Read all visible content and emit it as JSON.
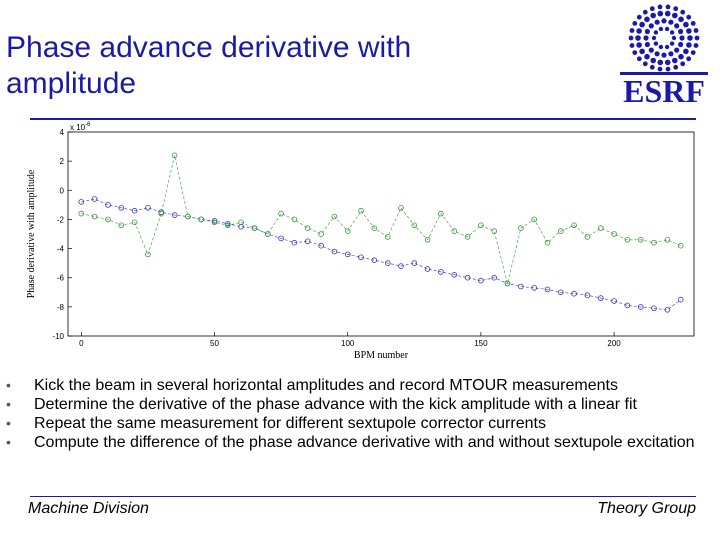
{
  "slide": {
    "title": "Phase advance derivative with amplitude",
    "logo_text": "ESRF",
    "footer_left": "Machine Division",
    "footer_right": "Theory Group",
    "bullets": [
      "Kick the beam in several horizontal amplitudes and record MTOUR measurements",
      "Determine the derivative of the phase advance with the kick amplitude with a linear fit",
      "Repeat the same measurement for different sextupole corrector currents",
      "Compute the difference of the phase advance derivative with and without sextupole excitation"
    ],
    "colors": {
      "title": "#1a1aa6",
      "series_blue": "#3333bb",
      "series_green": "#339933"
    }
  },
  "chart_data": {
    "type": "scatter",
    "xlabel": "BPM number",
    "ylabel": "Phase derivative with amplitude",
    "scale_label": "x 10",
    "scale_exponent": "-6",
    "xlim": [
      -5,
      230
    ],
    "ylim": [
      -10,
      4
    ],
    "xticks": [
      0,
      50,
      100,
      150,
      200
    ],
    "yticks": [
      4,
      2,
      0,
      -2,
      -4,
      -6,
      -8,
      -10
    ],
    "series": [
      {
        "color": "#3333bb",
        "x": [
          0,
          5,
          10,
          15,
          20,
          25,
          30,
          35,
          40,
          45,
          50,
          55,
          60,
          65,
          70,
          75,
          80,
          85,
          90,
          95,
          100,
          105,
          110,
          115,
          120,
          125,
          130,
          135,
          140,
          145,
          150,
          155,
          160,
          165,
          170,
          175,
          180,
          185,
          190,
          195,
          200,
          205,
          210,
          215,
          220,
          225
        ],
        "y": [
          -0.8,
          -0.6,
          -1.0,
          -1.2,
          -1.4,
          -1.2,
          -1.5,
          -1.7,
          -1.8,
          -2.0,
          -2.1,
          -2.3,
          -2.5,
          -2.6,
          -3.0,
          -3.3,
          -3.6,
          -3.5,
          -3.8,
          -4.2,
          -4.4,
          -4.6,
          -4.8,
          -5.0,
          -5.2,
          -5.0,
          -5.4,
          -5.6,
          -5.8,
          -6.0,
          -6.2,
          -6.0,
          -6.4,
          -6.6,
          -6.7,
          -6.8,
          -7.0,
          -7.1,
          -7.2,
          -7.4,
          -7.6,
          -7.9,
          -8.0,
          -8.1,
          -8.2,
          -7.5
        ]
      },
      {
        "color": "#339933",
        "x": [
          0,
          5,
          10,
          15,
          20,
          25,
          30,
          35,
          40,
          45,
          50,
          55,
          60,
          65,
          70,
          75,
          80,
          85,
          90,
          95,
          100,
          105,
          110,
          115,
          120,
          125,
          130,
          135,
          140,
          145,
          150,
          155,
          160,
          165,
          170,
          175,
          180,
          185,
          190,
          195,
          200,
          205,
          210,
          215,
          220,
          225
        ],
        "y": [
          -1.6,
          -1.8,
          -2.0,
          -2.4,
          -2.2,
          -4.4,
          -1.6,
          2.4,
          -1.8,
          -2.0,
          -2.2,
          -2.4,
          -2.2,
          -2.6,
          -3.0,
          -1.6,
          -2.0,
          -2.6,
          -3.0,
          -1.8,
          -2.8,
          -1.4,
          -2.6,
          -3.2,
          -1.2,
          -2.4,
          -3.4,
          -1.6,
          -2.8,
          -3.2,
          -2.4,
          -2.8,
          -6.4,
          -2.6,
          -2.0,
          -3.6,
          -2.8,
          -2.4,
          -3.2,
          -2.6,
          -3.0,
          -3.4,
          -3.4,
          -3.6,
          -3.4,
          -3.8
        ]
      }
    ]
  }
}
